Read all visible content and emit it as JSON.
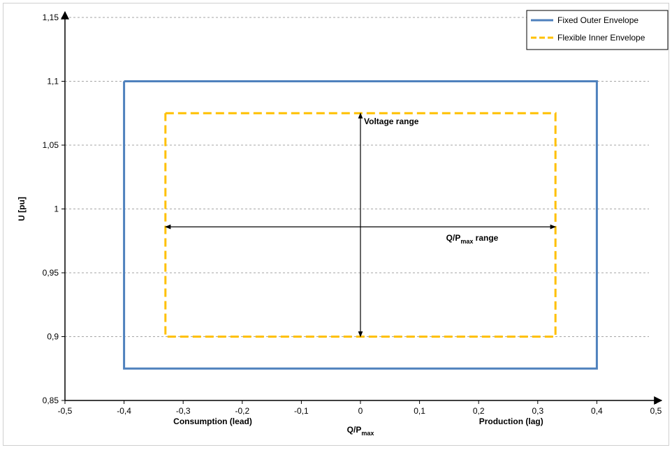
{
  "chart_data": {
    "type": "line",
    "title": "",
    "xlabel": "Q/P",
    "xlabel_sub": "max",
    "ylabel": "U [pu]",
    "xlim": [
      -0.5,
      0.5
    ],
    "ylim": [
      0.85,
      1.15
    ],
    "x_ticks": [
      -0.5,
      -0.4,
      -0.3,
      -0.2,
      -0.1,
      0,
      0.1,
      0.2,
      0.3,
      0.4,
      0.5
    ],
    "x_tick_labels": [
      "-0,5",
      "-0,4",
      "-0,3",
      "-0,2",
      "-0,1",
      "0",
      "0,1",
      "0,2",
      "0,3",
      "0,4",
      "0,5"
    ],
    "y_ticks": [
      0.85,
      0.9,
      0.95,
      1.0,
      1.05,
      1.1,
      1.15
    ],
    "y_tick_labels": [
      "0,85",
      "0,9",
      "0,95",
      "1",
      "1,05",
      "1,1",
      "1,15"
    ],
    "grid": "horizontal dashed",
    "legend_position": "top-right",
    "series": [
      {
        "name": "Fixed Outer Envelope",
        "color": "#4F81BD",
        "style": "solid",
        "x": [
          -0.4,
          0.4,
          0.4,
          -0.4,
          -0.4
        ],
        "y": [
          1.1,
          1.1,
          0.875,
          0.875,
          1.1
        ]
      },
      {
        "name": "Flexible Inner Envelope",
        "color": "#FFC000",
        "style": "dashed",
        "x": [
          -0.33,
          0.33,
          0.33,
          -0.33,
          -0.33
        ],
        "y": [
          1.075,
          1.075,
          0.9,
          0.9,
          1.075
        ]
      }
    ],
    "annotations": {
      "voltage_range": {
        "label": "Voltage range",
        "x": 0,
        "y_from": 0.9,
        "y_to": 1.075
      },
      "q_range": {
        "label_main": "Q/P",
        "label_sub": "max",
        "label_suffix": " range",
        "y": 0.986,
        "x_from": -0.33,
        "x_to": 0.33
      },
      "consumption_label": "Consumption (lead)",
      "production_label": "Production (lag)"
    }
  }
}
